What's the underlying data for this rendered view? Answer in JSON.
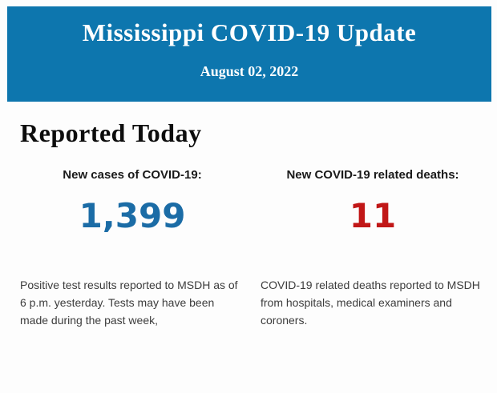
{
  "header": {
    "title": "Mississippi COVID-19 Update",
    "date": "August 02, 2022",
    "background_color": "#0d76ae",
    "text_color": "#ffffff"
  },
  "section": {
    "heading": "Reported Today"
  },
  "stats": [
    {
      "label": "New cases of COVID-19:",
      "value": "1,399",
      "value_color": "#1b6ca6",
      "description": "Positive test results reported to MSDH as of 6 p.m. yesterday. Tests may have been made during the past week,"
    },
    {
      "label": "New COVID-19 related deaths:",
      "value": "11",
      "value_color": "#c11717",
      "description": "COVID-19 related deaths reported to MSDH from hospitals, medical examiners and coroners."
    }
  ]
}
